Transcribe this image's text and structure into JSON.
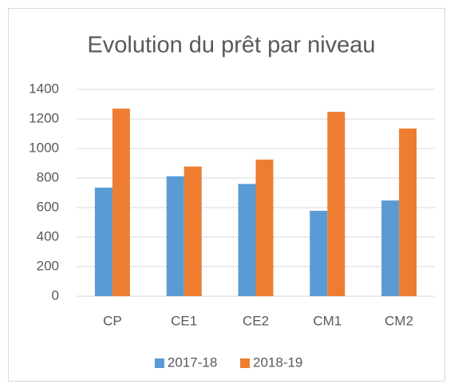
{
  "chart_data": {
    "type": "bar",
    "title": "Evolution du prêt par niveau",
    "categories": [
      "CP",
      "CE1",
      "CE2",
      "CM1",
      "CM2"
    ],
    "series": [
      {
        "name": "2017-18",
        "color": "#5b9bd5",
        "values": [
          735,
          812,
          760,
          578,
          648
        ]
      },
      {
        "name": "2018-19",
        "color": "#ed7d31",
        "values": [
          1270,
          878,
          925,
          1248,
          1135
        ]
      }
    ],
    "ylim": [
      0,
      1400
    ],
    "yticks": [
      0,
      200,
      400,
      600,
      800,
      1000,
      1200,
      1400
    ],
    "grid": true,
    "legend": "bottom"
  }
}
